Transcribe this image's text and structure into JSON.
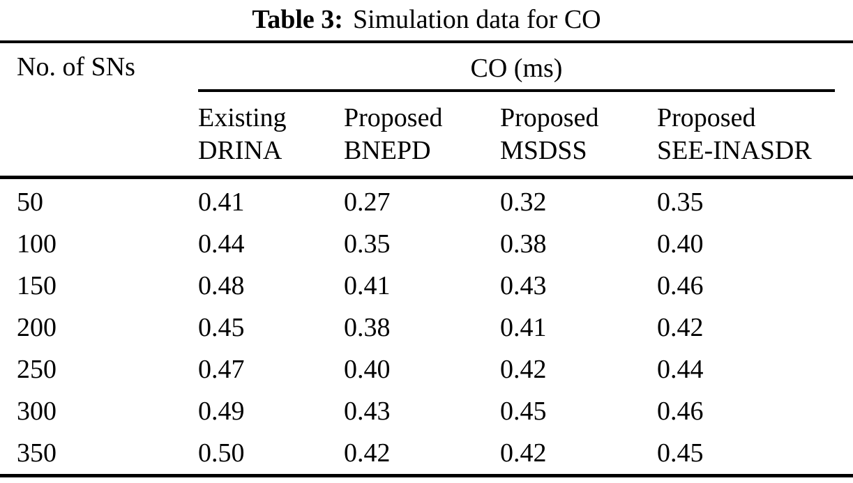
{
  "page": {
    "background_color": "#ffffff",
    "text_color": "#000000"
  },
  "title": {
    "label": "Table 3:",
    "text": "Simulation data for CO"
  },
  "table": {
    "row_header": "No. of SNs",
    "group_header": "CO (ms)",
    "columns": [
      {
        "line1": "Existing",
        "line2": "DRINA"
      },
      {
        "line1": "Proposed",
        "line2": "BNEPD"
      },
      {
        "line1": "Proposed",
        "line2": "MSDSS"
      },
      {
        "line1": "Proposed",
        "line2": "SEE-INASDR"
      }
    ],
    "rows": [
      {
        "sns": "50",
        "values": [
          "0.41",
          "0.27",
          "0.32",
          "0.35"
        ]
      },
      {
        "sns": "100",
        "values": [
          "0.44",
          "0.35",
          "0.38",
          "0.40"
        ]
      },
      {
        "sns": "150",
        "values": [
          "0.48",
          "0.41",
          "0.43",
          "0.46"
        ]
      },
      {
        "sns": "200",
        "values": [
          "0.45",
          "0.38",
          "0.41",
          "0.42"
        ]
      },
      {
        "sns": "250",
        "values": [
          "0.47",
          "0.40",
          "0.42",
          "0.44"
        ]
      },
      {
        "sns": "300",
        "values": [
          "0.49",
          "0.43",
          "0.45",
          "0.46"
        ]
      },
      {
        "sns": "350",
        "values": [
          "0.50",
          "0.42",
          "0.42",
          "0.45"
        ]
      }
    ]
  },
  "chart_data": {
    "type": "table",
    "title": "Table 3: Simulation data for CO",
    "xlabel": "No. of SNs",
    "ylabel": "CO (ms)",
    "categories": [
      50,
      100,
      150,
      200,
      250,
      300,
      350
    ],
    "series": [
      {
        "name": "Existing DRINA",
        "values": [
          0.41,
          0.44,
          0.48,
          0.45,
          0.47,
          0.49,
          0.5
        ]
      },
      {
        "name": "Proposed BNEPD",
        "values": [
          0.27,
          0.35,
          0.41,
          0.38,
          0.4,
          0.43,
          0.42
        ]
      },
      {
        "name": "Proposed MSDSS",
        "values": [
          0.32,
          0.38,
          0.43,
          0.41,
          0.42,
          0.45,
          0.42
        ]
      },
      {
        "name": "Proposed SEE-INASDR",
        "values": [
          0.35,
          0.4,
          0.46,
          0.42,
          0.44,
          0.46,
          0.45
        ]
      }
    ]
  }
}
